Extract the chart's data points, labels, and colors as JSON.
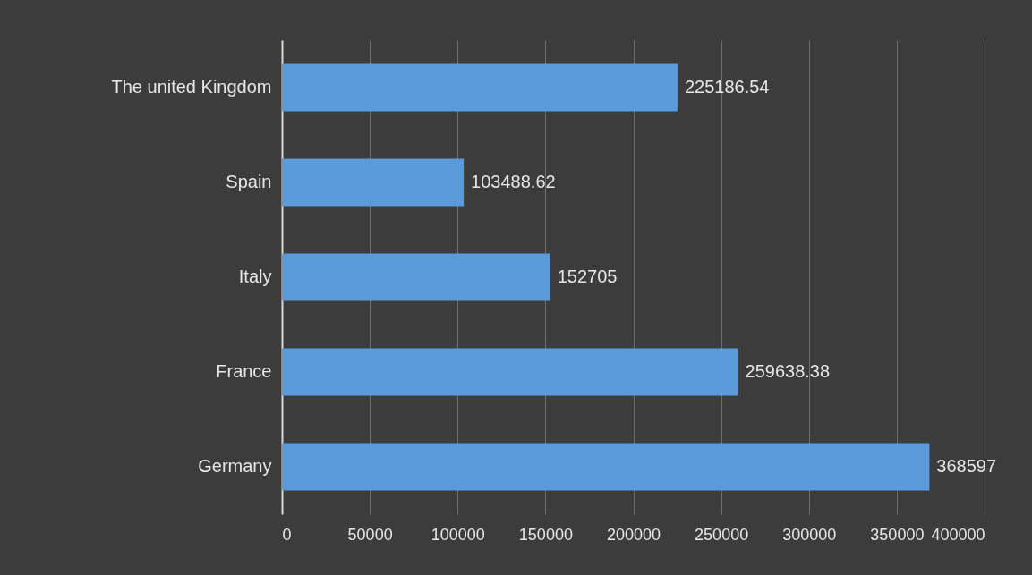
{
  "chart_data": {
    "type": "bar",
    "orientation": "horizontal",
    "categories": [
      "The united Kingdom",
      "Spain",
      "Italy",
      "France",
      "Germany"
    ],
    "values": [
      225186.54,
      103488.62,
      152705,
      259638.38,
      368597
    ],
    "color": "#5b9bdc",
    "xlim": [
      0,
      400000
    ],
    "xticks": [
      0,
      50000,
      100000,
      150000,
      200000,
      250000,
      300000,
      350000,
      400000
    ],
    "grid": "x",
    "data_labels": true
  }
}
